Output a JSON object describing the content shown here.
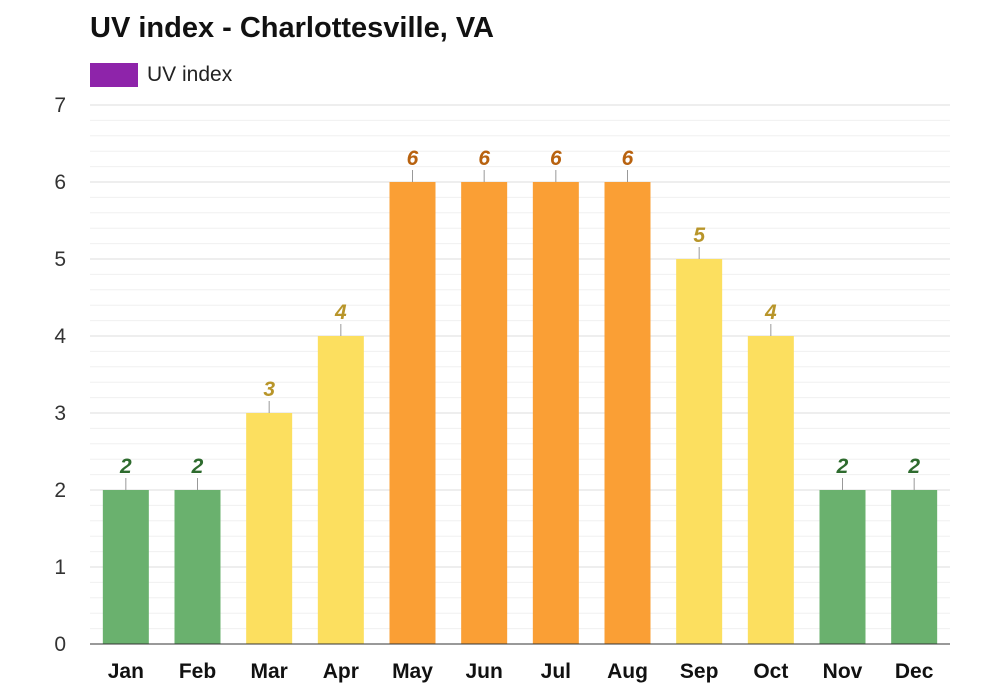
{
  "title": "UV index - Charlottesville, VA",
  "legend": {
    "label": "UV index",
    "color": "#8e24aa"
  },
  "chart_data": {
    "type": "bar",
    "title": "UV index - Charlottesville, VA",
    "xlabel": "",
    "ylabel": "",
    "categories": [
      "Jan",
      "Feb",
      "Mar",
      "Apr",
      "May",
      "Jun",
      "Jul",
      "Aug",
      "Sep",
      "Oct",
      "Nov",
      "Dec"
    ],
    "series": [
      {
        "name": "UV index",
        "values": [
          2,
          2,
          3,
          4,
          6,
          6,
          6,
          6,
          5,
          4,
          2,
          2
        ]
      }
    ],
    "ylim": [
      0,
      7
    ],
    "yticks": [
      0,
      1,
      2,
      3,
      4,
      5,
      6,
      7
    ],
    "grid": true,
    "legend_position": "top-left",
    "bar_colors": [
      "#6ab16e",
      "#6ab16e",
      "#fcdf5f",
      "#fcdf5f",
      "#fa9f35",
      "#fa9f35",
      "#fa9f35",
      "#fa9f35",
      "#fcdf5f",
      "#fcdf5f",
      "#6ab16e",
      "#6ab16e"
    ],
    "label_colors": [
      "#2e6b2e",
      "#2e6b2e",
      "#b8952a",
      "#b8952a",
      "#b8620f",
      "#b8620f",
      "#b8620f",
      "#b8620f",
      "#b8952a",
      "#b8952a",
      "#2e6b2e",
      "#2e6b2e"
    ]
  }
}
